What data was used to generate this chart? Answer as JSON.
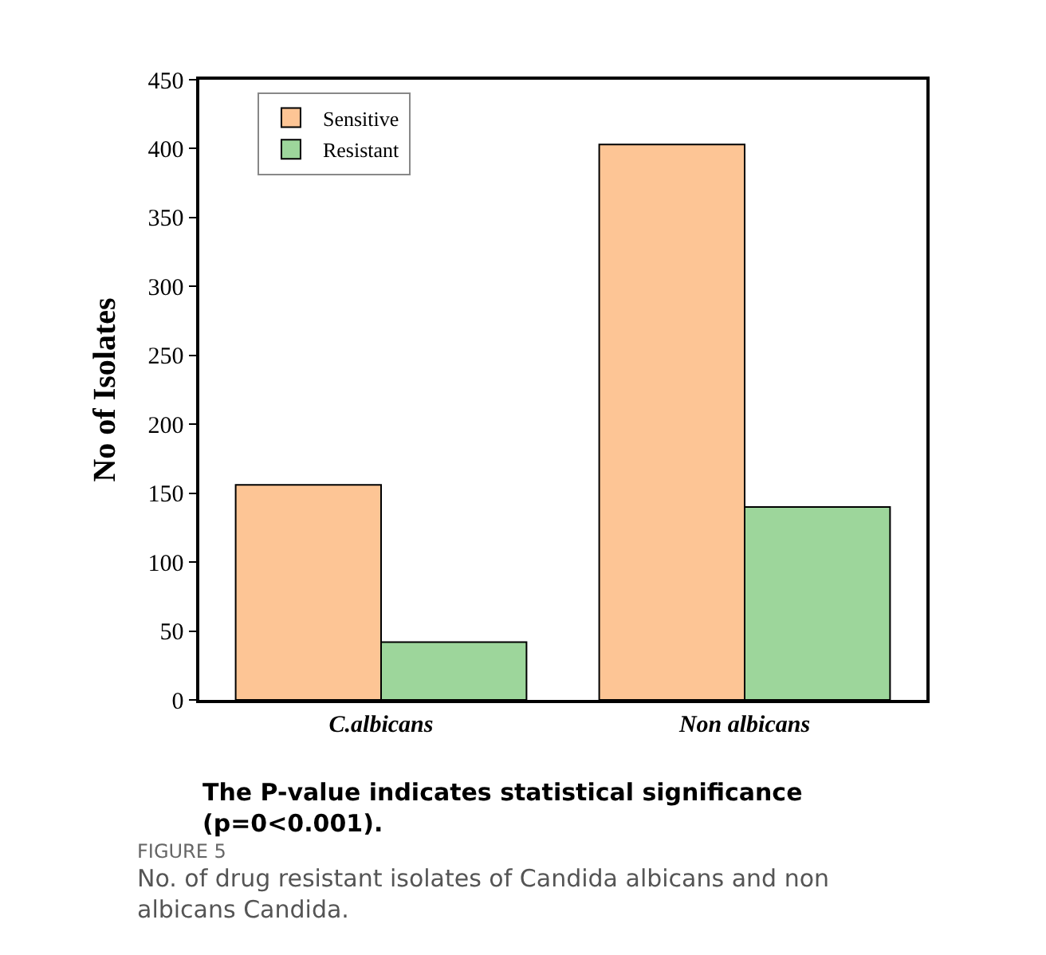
{
  "chart_data": {
    "type": "bar",
    "categories": [
      "C.albicans",
      "Non albicans"
    ],
    "ylabel": "No of Isolates",
    "series": [
      {
        "name": "Sensitive",
        "color": "#fdc595",
        "values": [
          156,
          403
        ]
      },
      {
        "name": "Resistant",
        "color": "#9dd69b",
        "values": [
          42,
          140
        ]
      }
    ],
    "ylim": [
      0,
      450
    ],
    "yticks": [
      0,
      50,
      100,
      150,
      200,
      250,
      300,
      350,
      400,
      450
    ],
    "legend": "top left",
    "annotations": [
      "The P-value indicates statistical significance (p=0<0.001).",
      "FIGURE 5",
      "No. of drug resistant isolates of Candida albicans and non albicans Candida."
    ]
  }
}
